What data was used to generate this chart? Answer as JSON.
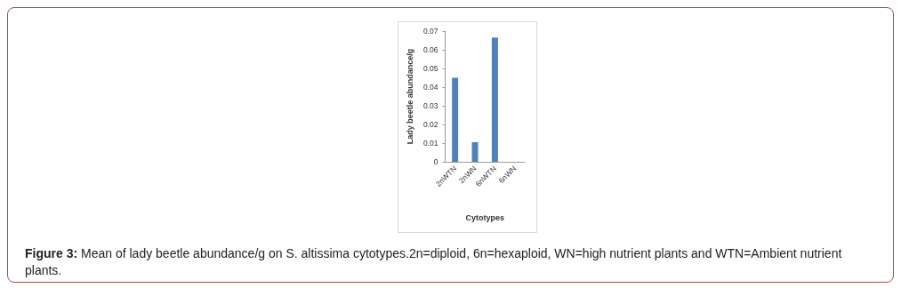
{
  "chart_data": {
    "type": "bar",
    "xlabel": "Cytotypes",
    "ylabel": "Lady beetle abundance/g",
    "categories": [
      "2nWTN",
      "2nWN",
      "6nWTN",
      "6nWN"
    ],
    "values": [
      0.045,
      0.0105,
      0.0665,
      0
    ],
    "color": "#4f81bd",
    "ylim": [
      0,
      0.07
    ],
    "yticks": [
      0,
      0.01,
      0.02,
      0.03,
      0.04,
      0.05,
      0.06,
      0.07
    ],
    "grid": false,
    "annotations": [
      "Figure 3: Mean of lady beetle abundance/g on S. altissima cytotypes.2n=diploid, 6n=hexaploid, WN=high nutrient plants and WTN=Ambient nutrient plants."
    ]
  }
}
